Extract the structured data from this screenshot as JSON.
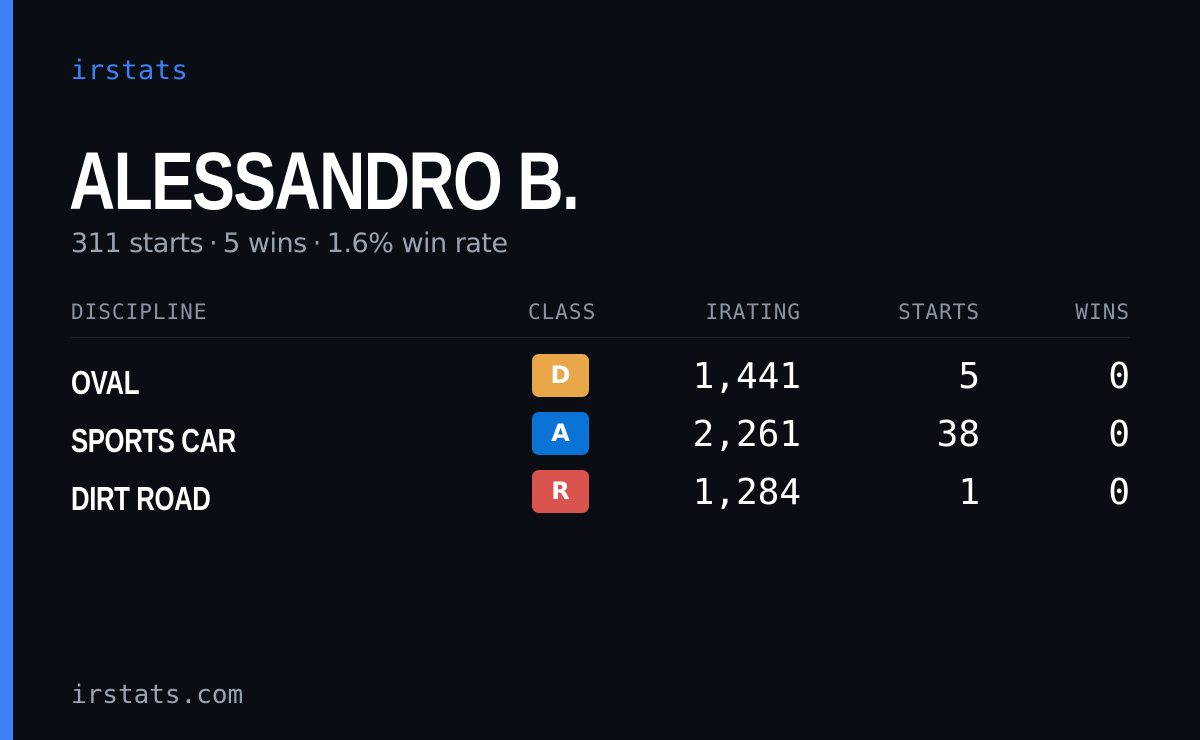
{
  "brand": "irstats",
  "driver": {
    "name": "ALESSANDRO B.",
    "starts_text": "311 starts",
    "wins_text": "5 wins",
    "win_rate_text": "1.6% win rate",
    "separator": "·"
  },
  "table": {
    "headers": {
      "discipline": "DISCIPLINE",
      "class": "CLASS",
      "irating": "IRATING",
      "starts": "STARTS",
      "wins": "WINS"
    },
    "rows": [
      {
        "discipline": "OVAL",
        "class": "D",
        "class_color": "#e8a84a",
        "irating": "1,441",
        "starts": "5",
        "wins": "0"
      },
      {
        "discipline": "SPORTS CAR",
        "class": "A",
        "class_color": "#0b72d6",
        "irating": "2,261",
        "starts": "38",
        "wins": "0"
      },
      {
        "discipline": "DIRT ROAD",
        "class": "R",
        "class_color": "#d9534f",
        "irating": "1,284",
        "starts": "1",
        "wins": "0"
      }
    ]
  },
  "footer": "irstats.com",
  "colors": {
    "accent": "#3b82f6",
    "background": "#0a0d14",
    "muted_text": "#9aa3b2"
  }
}
